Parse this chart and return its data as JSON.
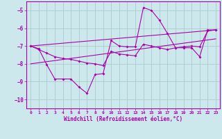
{
  "xlabel": "Windchill (Refroidissement éolien,°C)",
  "bg_color": "#cce8ec",
  "line_color": "#aa00aa",
  "grid_color": "#aacccc",
  "x_ticks": [
    0,
    1,
    2,
    3,
    4,
    5,
    6,
    7,
    8,
    9,
    10,
    11,
    12,
    13,
    14,
    15,
    16,
    17,
    18,
    19,
    20,
    21,
    22,
    23
  ],
  "y_ticks": [
    -10,
    -9,
    -8,
    -7,
    -6,
    -5
  ],
  "ylim": [
    -10.5,
    -4.5
  ],
  "xlim": [
    -0.5,
    23.5
  ],
  "line1_x": [
    0,
    1,
    2,
    3,
    4,
    5,
    6,
    7,
    8,
    9,
    10,
    11,
    12,
    13,
    14,
    15,
    16,
    17,
    18,
    19,
    20,
    21,
    22,
    23
  ],
  "line1_y": [
    -7.0,
    -7.15,
    -8.05,
    -8.85,
    -8.85,
    -8.85,
    -9.3,
    -9.65,
    -8.6,
    -8.55,
    -6.7,
    -7.0,
    -7.05,
    -7.05,
    -4.85,
    -5.0,
    -5.55,
    -6.3,
    -7.1,
    -7.1,
    -7.1,
    -7.6,
    -6.1,
    -6.1
  ],
  "line2_x": [
    0,
    1,
    2,
    3,
    4,
    5,
    6,
    7,
    8,
    9,
    10,
    11,
    12,
    13,
    14,
    15,
    16,
    17,
    18,
    19,
    20,
    21,
    22,
    23
  ],
  "line2_y": [
    -7.0,
    -7.2,
    -7.4,
    -7.6,
    -7.7,
    -7.75,
    -7.85,
    -7.95,
    -8.0,
    -8.1,
    -7.3,
    -7.45,
    -7.5,
    -7.55,
    -6.9,
    -7.0,
    -7.1,
    -7.2,
    -7.1,
    -7.05,
    -7.0,
    -7.05,
    -6.15,
    -6.1
  ],
  "line3_x": [
    0,
    23
  ],
  "line3_y": [
    -7.0,
    -6.1
  ],
  "line4_x": [
    0,
    23
  ],
  "line4_y": [
    -8.0,
    -6.6
  ]
}
